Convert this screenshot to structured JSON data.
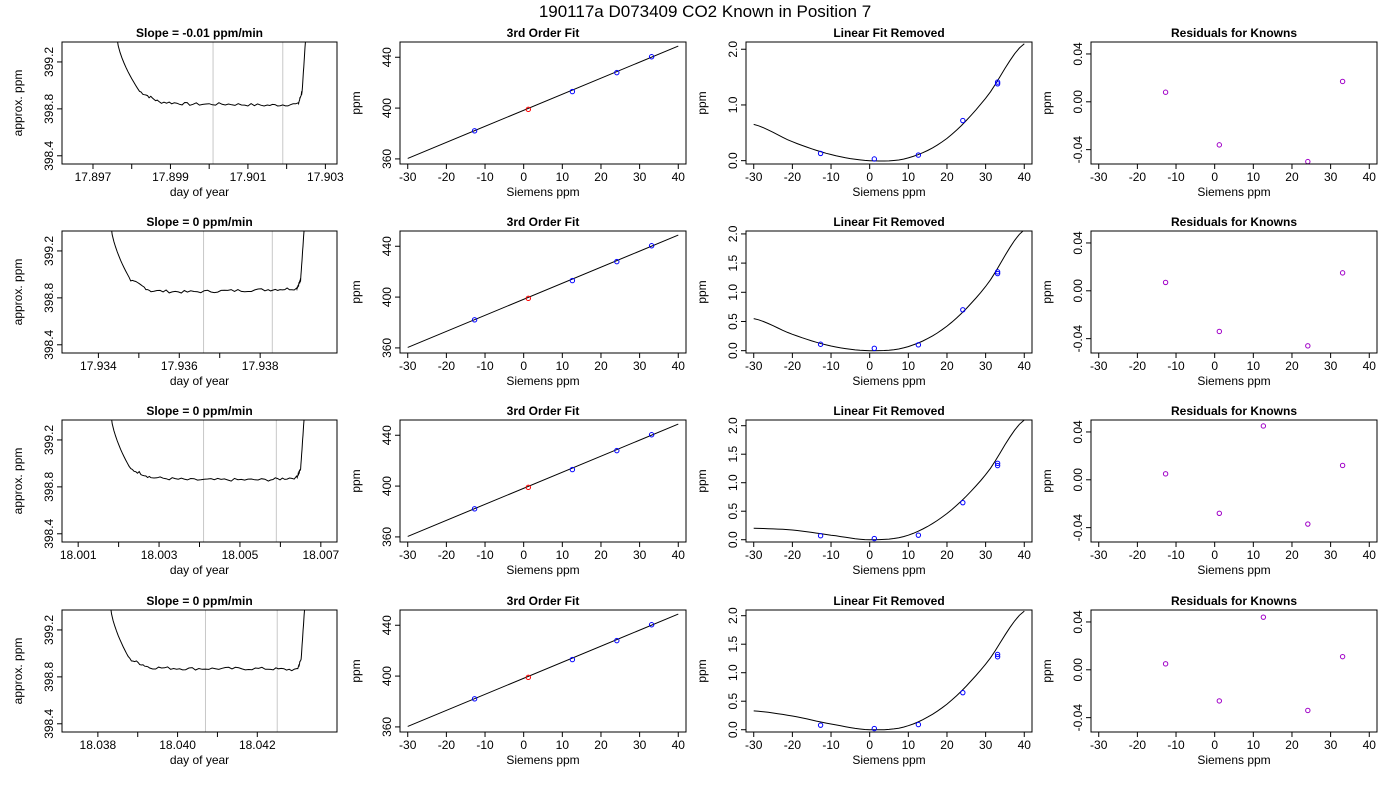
{
  "page_title": "190117a     D073409   CO2 Known in Position  7",
  "colors": {
    "trace": "#000000",
    "window_lines": "#c8c8c8",
    "known_points": "#0000ff",
    "highlight_point": "#ff0000",
    "residual_points": "#a000c8",
    "fit_curve": "#000000"
  },
  "chart_data": [
    {
      "row": 1,
      "type": "line",
      "title": "Slope =  -0.01  ppm/min",
      "xlabel": "day of year",
      "ylabel": "approx. ppm",
      "xlim": [
        17.8962,
        17.9033
      ],
      "ylim": [
        398.33,
        399.37
      ],
      "xticks": [
        17.897,
        17.899,
        17.901,
        17.903
      ],
      "xtick_labels": [
        "17.897",
        "17.899",
        "17.901",
        "17.903"
      ],
      "yticks": [
        398.4,
        398.8,
        399.2
      ],
      "ytick_labels": [
        "398.4",
        "398.8",
        "399.2"
      ],
      "window": [
        17.9001,
        17.9019
      ],
      "trace": {
        "x": [
          17.8976,
          17.8982,
          17.8987,
          17.8995,
          17.9005,
          17.9015,
          17.9023,
          17.9024,
          17.9025
        ],
        "y": [
          399.45,
          398.95,
          398.86,
          398.84,
          398.84,
          398.83,
          398.84,
          398.95,
          399.45
        ]
      }
    },
    {
      "row": 1,
      "type": "scatter",
      "title": "3rd Order Fit",
      "xlabel": "Siemens ppm",
      "ylabel": "ppm",
      "xlim": [
        -32,
        42
      ],
      "ylim": [
        356,
        452
      ],
      "xticks": [
        -30,
        -20,
        -10,
        0,
        10,
        20,
        30,
        40
      ],
      "xtick_labels": [
        "-30",
        "-20",
        "-10",
        "0",
        "10",
        "20",
        "30",
        "40"
      ],
      "yticks": [
        360,
        400,
        440
      ],
      "ytick_labels": [
        "360",
        "400",
        "440"
      ],
      "points": {
        "x": [
          -12.7,
          1.2,
          12.6,
          24.1,
          33.1
        ],
        "y": [
          382.1,
          399.0,
          413.0,
          427.9,
          440.4
        ]
      },
      "highlight_index": 1,
      "line": {
        "x": [
          -30,
          40
        ],
        "y": [
          360.4,
          448.8
        ]
      }
    },
    {
      "row": 1,
      "type": "scatter",
      "title": "Linear Fit Removed",
      "xlabel": "Siemens ppm",
      "ylabel": "ppm",
      "xlim": [
        -32,
        42
      ],
      "ylim": [
        -0.06,
        2.13
      ],
      "xticks": [
        -30,
        -20,
        -10,
        0,
        10,
        20,
        30,
        40
      ],
      "xtick_labels": [
        "-30",
        "-20",
        "-10",
        "0",
        "10",
        "20",
        "30",
        "40"
      ],
      "yticks": [
        0.0,
        1.0,
        2.0
      ],
      "ytick_labels": [
        "0.0",
        "1.0",
        "2.0"
      ],
      "points": {
        "x": [
          -12.7,
          1.2,
          12.6,
          24.1,
          33.1,
          33.1
        ],
        "y": [
          0.13,
          0.03,
          0.1,
          0.72,
          1.38,
          1.41
        ]
      },
      "curve": {
        "x": [
          -30,
          -20,
          -10,
          0,
          10,
          20,
          30,
          40
        ],
        "y": [
          0.65,
          0.34,
          0.11,
          0.0,
          0.05,
          0.4,
          1.12,
          2.1
        ]
      }
    },
    {
      "row": 1,
      "type": "scatter",
      "title": "Residuals for Knowns",
      "xlabel": "Siemens ppm",
      "ylabel": "ppm",
      "xlim": [
        -32,
        42
      ],
      "ylim": [
        -0.052,
        0.05
      ],
      "xticks": [
        -30,
        -20,
        -10,
        0,
        10,
        20,
        30,
        40
      ],
      "xtick_labels": [
        "-30",
        "-20",
        "-10",
        "0",
        "10",
        "20",
        "30",
        "40"
      ],
      "yticks": [
        -0.04,
        0.0,
        0.04
      ],
      "ytick_labels": [
        "-0.04",
        "0.00",
        "0.04"
      ],
      "points": {
        "x": [
          -12.7,
          1.2,
          24.1,
          33.1
        ],
        "y": [
          0.008,
          -0.036,
          -0.05,
          0.017
        ]
      }
    },
    {
      "row": 2,
      "type": "line",
      "title": "Slope =  0  ppm/min",
      "xlabel": "day of year",
      "ylabel": "approx. ppm",
      "xlim": [
        17.9331,
        17.9399
      ],
      "ylim": [
        398.33,
        399.37
      ],
      "xticks": [
        17.934,
        17.936,
        17.938
      ],
      "xtick_labels": [
        "17.934",
        "17.936",
        "17.938"
      ],
      "yticks": [
        398.4,
        398.8,
        399.2
      ],
      "ytick_labels": [
        "398.4",
        "398.8",
        "399.2"
      ],
      "window": [
        17.9366,
        17.9383
      ],
      "trace": {
        "x": [
          17.9343,
          17.9348,
          17.9353,
          17.9362,
          17.9372,
          17.9382,
          17.9389,
          17.939,
          17.9391
        ],
        "y": [
          399.45,
          398.95,
          398.86,
          398.85,
          398.86,
          398.87,
          398.88,
          398.95,
          399.45
        ]
      }
    },
    {
      "row": 2,
      "type": "scatter",
      "title": "3rd Order Fit",
      "xlabel": "Siemens ppm",
      "ylabel": "ppm",
      "xlim": [
        -32,
        42
      ],
      "ylim": [
        356,
        452
      ],
      "xticks": [
        -30,
        -20,
        -10,
        0,
        10,
        20,
        30,
        40
      ],
      "xtick_labels": [
        "-30",
        "-20",
        "-10",
        "0",
        "10",
        "20",
        "30",
        "40"
      ],
      "yticks": [
        360,
        400,
        440
      ],
      "ytick_labels": [
        "360",
        "400",
        "440"
      ],
      "points": {
        "x": [
          -12.7,
          1.2,
          12.6,
          24.1,
          33.1
        ],
        "y": [
          382.1,
          399.0,
          413.0,
          427.9,
          440.4
        ]
      },
      "highlight_index": 1,
      "line": {
        "x": [
          -30,
          40
        ],
        "y": [
          360.4,
          448.8
        ]
      }
    },
    {
      "row": 2,
      "type": "scatter",
      "title": "Linear Fit Removed",
      "xlabel": "Siemens ppm",
      "ylabel": "ppm",
      "xlim": [
        -32,
        42
      ],
      "ylim": [
        -0.04,
        2.05
      ],
      "xticks": [
        -30,
        -20,
        -10,
        0,
        10,
        20,
        30,
        40
      ],
      "xtick_labels": [
        "-30",
        "-20",
        "-10",
        "0",
        "10",
        "20",
        "30",
        "40"
      ],
      "yticks": [
        0.0,
        0.5,
        1.0,
        1.5,
        2.0
      ],
      "ytick_labels": [
        "0.0",
        "0.5",
        "1.0",
        "1.5",
        "2.0"
      ],
      "points": {
        "x": [
          -12.7,
          1.2,
          12.6,
          24.1,
          33.1,
          33.1
        ],
        "y": [
          0.11,
          0.04,
          0.1,
          0.7,
          1.32,
          1.35
        ]
      },
      "curve": {
        "x": [
          -30,
          -20,
          -10,
          0,
          10,
          20,
          30,
          40
        ],
        "y": [
          0.55,
          0.28,
          0.08,
          0.0,
          0.07,
          0.42,
          1.1,
          2.07
        ]
      }
    },
    {
      "row": 2,
      "type": "scatter",
      "title": "Residuals for Knowns",
      "xlabel": "Siemens ppm",
      "ylabel": "ppm",
      "xlim": [
        -32,
        42
      ],
      "ylim": [
        -0.052,
        0.05
      ],
      "xticks": [
        -30,
        -20,
        -10,
        0,
        10,
        20,
        30,
        40
      ],
      "xtick_labels": [
        "-30",
        "-20",
        "-10",
        "0",
        "10",
        "20",
        "30",
        "40"
      ],
      "yticks": [
        -0.04,
        0.0,
        0.04
      ],
      "ytick_labels": [
        "-0.04",
        "0.00",
        "0.04"
      ],
      "points": {
        "x": [
          -12.7,
          1.2,
          24.1,
          33.1
        ],
        "y": [
          0.007,
          -0.034,
          -0.046,
          0.015
        ]
      }
    },
    {
      "row": 3,
      "type": "line",
      "title": "Slope =  0  ppm/min",
      "xlabel": "day of year",
      "ylabel": "approx. ppm",
      "xlim": [
        18.0006,
        18.0074
      ],
      "ylim": [
        398.33,
        399.37
      ],
      "xticks": [
        18.001,
        18.003,
        18.005,
        18.007
      ],
      "xtick_labels": [
        "18.001",
        "18.003",
        "18.005",
        "18.007"
      ],
      "yticks": [
        398.4,
        398.8,
        399.2
      ],
      "ytick_labels": [
        "398.4",
        "398.8",
        "399.2"
      ],
      "window": [
        18.0041,
        18.0059
      ],
      "trace": {
        "x": [
          18.0018,
          18.0023,
          18.0028,
          18.0037,
          18.0047,
          18.0057,
          18.0064,
          18.0065,
          18.0066
        ],
        "y": [
          399.45,
          398.95,
          398.88,
          398.86,
          398.86,
          398.86,
          398.88,
          398.95,
          399.45
        ]
      }
    },
    {
      "row": 3,
      "type": "scatter",
      "title": "3rd Order Fit",
      "xlabel": "Siemens ppm",
      "ylabel": "ppm",
      "xlim": [
        -32,
        42
      ],
      "ylim": [
        356,
        452
      ],
      "xticks": [
        -30,
        -20,
        -10,
        0,
        10,
        20,
        30,
        40
      ],
      "xtick_labels": [
        "-30",
        "-20",
        "-10",
        "0",
        "10",
        "20",
        "30",
        "40"
      ],
      "yticks": [
        360,
        400,
        440
      ],
      "ytick_labels": [
        "360",
        "400",
        "440"
      ],
      "points": {
        "x": [
          -12.7,
          1.2,
          12.6,
          24.1,
          33.1
        ],
        "y": [
          382.1,
          399.0,
          413.0,
          427.9,
          440.4
        ]
      },
      "highlight_index": 1,
      "line": {
        "x": [
          -30,
          40
        ],
        "y": [
          360.4,
          448.8
        ]
      }
    },
    {
      "row": 3,
      "type": "scatter",
      "title": "Linear Fit Removed",
      "xlabel": "Siemens ppm",
      "ylabel": "ppm",
      "xlim": [
        -32,
        42
      ],
      "ylim": [
        -0.04,
        2.1
      ],
      "xticks": [
        -30,
        -20,
        -10,
        0,
        10,
        20,
        30,
        40
      ],
      "xtick_labels": [
        "-30",
        "-20",
        "-10",
        "0",
        "10",
        "20",
        "30",
        "40"
      ],
      "yticks": [
        0.0,
        0.5,
        1.0,
        1.5,
        2.0
      ],
      "ytick_labels": [
        "0.0",
        "0.5",
        "1.0",
        "1.5",
        "2.0"
      ],
      "points": {
        "x": [
          -12.7,
          1.2,
          12.6,
          24.1,
          33.1,
          33.1
        ],
        "y": [
          0.07,
          0.02,
          0.08,
          0.65,
          1.3,
          1.34
        ]
      },
      "curve": {
        "x": [
          -30,
          -20,
          -10,
          0,
          10,
          20,
          30,
          40
        ],
        "y": [
          0.2,
          0.17,
          0.08,
          0.0,
          0.08,
          0.46,
          1.14,
          2.1
        ]
      }
    },
    {
      "row": 3,
      "type": "scatter",
      "title": "Residuals for Knowns",
      "xlabel": "Siemens ppm",
      "ylabel": "ppm",
      "xlim": [
        -32,
        42
      ],
      "ylim": [
        -0.052,
        0.05
      ],
      "xticks": [
        -30,
        -20,
        -10,
        0,
        10,
        20,
        30,
        40
      ],
      "xtick_labels": [
        "-30",
        "-20",
        "-10",
        "0",
        "10",
        "20",
        "30",
        "40"
      ],
      "yticks": [
        -0.04,
        0.0,
        0.04
      ],
      "ytick_labels": [
        "-0.04",
        "0.00",
        "0.04"
      ],
      "points": {
        "x": [
          -12.7,
          1.2,
          12.6,
          24.1,
          33.1
        ],
        "y": [
          0.005,
          -0.028,
          0.045,
          -0.037,
          0.012
        ]
      }
    },
    {
      "row": 4,
      "type": "line",
      "title": "Slope =  0  ppm/min",
      "xlabel": "day of year",
      "ylabel": "approx. ppm",
      "xlim": [
        18.0371,
        18.044
      ],
      "ylim": [
        398.33,
        399.37
      ],
      "xticks": [
        18.038,
        18.04,
        18.042
      ],
      "xtick_labels": [
        "18.038",
        "18.040",
        "18.042"
      ],
      "yticks": [
        398.4,
        398.8,
        399.2
      ],
      "ytick_labels": [
        "398.4",
        "398.8",
        "399.2"
      ],
      "window": [
        18.0407,
        18.0425
      ],
      "trace": {
        "x": [
          18.0383,
          18.0388,
          18.0393,
          18.0402,
          18.0412,
          18.0422,
          18.043,
          18.0431,
          18.0432
        ],
        "y": [
          399.45,
          398.95,
          398.88,
          398.87,
          398.87,
          398.87,
          398.86,
          398.95,
          399.45
        ]
      }
    },
    {
      "row": 4,
      "type": "scatter",
      "title": "3rd Order Fit",
      "xlabel": "Siemens ppm",
      "ylabel": "ppm",
      "xlim": [
        -32,
        42
      ],
      "ylim": [
        356,
        452
      ],
      "xticks": [
        -30,
        -20,
        -10,
        0,
        10,
        20,
        30,
        40
      ],
      "xtick_labels": [
        "-30",
        "-20",
        "-10",
        "0",
        "10",
        "20",
        "30",
        "40"
      ],
      "yticks": [
        360,
        400,
        440
      ],
      "ytick_labels": [
        "360",
        "400",
        "440"
      ],
      "points": {
        "x": [
          -12.7,
          1.2,
          12.6,
          24.1,
          33.1
        ],
        "y": [
          382.1,
          399.0,
          413.0,
          427.9,
          440.4
        ]
      },
      "highlight_index": 1,
      "line": {
        "x": [
          -30,
          40
        ],
        "y": [
          360.4,
          448.8
        ]
      }
    },
    {
      "row": 4,
      "type": "scatter",
      "title": "Linear Fit Removed",
      "xlabel": "Siemens ppm",
      "ylabel": "ppm",
      "xlim": [
        -32,
        42
      ],
      "ylim": [
        -0.04,
        2.1
      ],
      "xticks": [
        -30,
        -20,
        -10,
        0,
        10,
        20,
        30,
        40
      ],
      "xtick_labels": [
        "-30",
        "-20",
        "-10",
        "0",
        "10",
        "20",
        "30",
        "40"
      ],
      "yticks": [
        0.0,
        0.5,
        1.0,
        1.5,
        2.0
      ],
      "ytick_labels": [
        "0.0",
        "0.5",
        "1.0",
        "1.5",
        "2.0"
      ],
      "points": {
        "x": [
          -12.7,
          1.2,
          12.6,
          24.1,
          33.1,
          33.1
        ],
        "y": [
          0.08,
          0.02,
          0.09,
          0.65,
          1.28,
          1.32
        ]
      },
      "curve": {
        "x": [
          -30,
          -20,
          -10,
          0,
          10,
          20,
          30,
          40
        ],
        "y": [
          0.33,
          0.24,
          0.1,
          0.0,
          0.07,
          0.45,
          1.15,
          2.08
        ]
      }
    },
    {
      "row": 4,
      "type": "scatter",
      "title": "Residuals for Knowns",
      "xlabel": "Siemens ppm",
      "ylabel": "ppm",
      "xlim": [
        -32,
        42
      ],
      "ylim": [
        -0.052,
        0.05
      ],
      "xticks": [
        -30,
        -20,
        -10,
        0,
        10,
        20,
        30,
        40
      ],
      "xtick_labels": [
        "-30",
        "-20",
        "-10",
        "0",
        "10",
        "20",
        "30",
        "40"
      ],
      "yticks": [
        -0.04,
        0.0,
        0.04
      ],
      "ytick_labels": [
        "-0.04",
        "0.00",
        "0.04"
      ],
      "points": {
        "x": [
          -12.7,
          1.2,
          12.6,
          24.1,
          33.1
        ],
        "y": [
          0.005,
          -0.026,
          0.044,
          -0.034,
          0.011
        ]
      }
    }
  ]
}
